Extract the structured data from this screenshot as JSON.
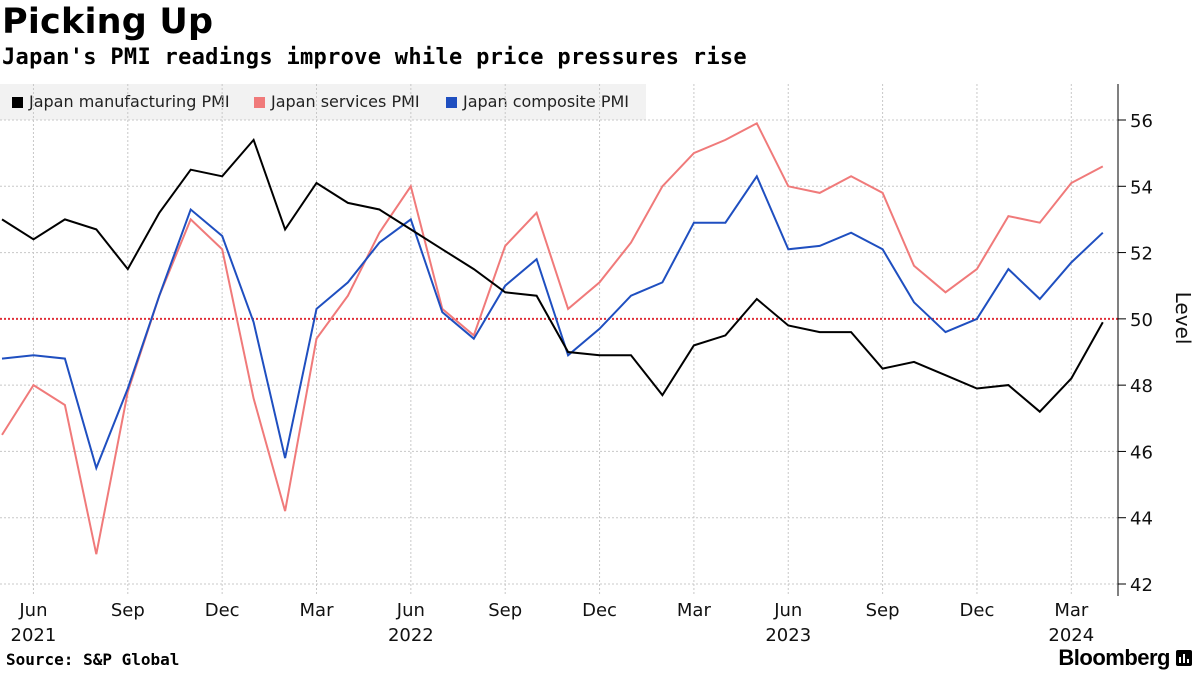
{
  "title": "Picking Up",
  "subtitle": "Japan's PMI readings improve while price pressures rise",
  "source": "Source: S&P Global",
  "brand": "Bloomberg",
  "colors": {
    "manufacturing": "#000000",
    "services": "#f07a7a",
    "composite": "#1f4fc0",
    "reference": "#e0303a",
    "grid": "#c8c8c8"
  },
  "chart_data": {
    "type": "line",
    "title": "Picking Up",
    "subtitle": "Japan's PMI readings improve while price pressures rise",
    "xlabel": "",
    "ylabel": "Level",
    "ylim": [
      42,
      57
    ],
    "yticks": [
      42,
      44,
      46,
      48,
      50,
      52,
      54,
      56
    ],
    "reference_line": 50,
    "grid": true,
    "legend_position": "top-left",
    "x": [
      "2021-05",
      "2021-06",
      "2021-07",
      "2021-08",
      "2021-09",
      "2021-10",
      "2021-11",
      "2021-12",
      "2022-01",
      "2022-02",
      "2022-03",
      "2022-04",
      "2022-05",
      "2022-06",
      "2022-07",
      "2022-08",
      "2022-09",
      "2022-10",
      "2022-11",
      "2022-12",
      "2023-01",
      "2023-02",
      "2023-03",
      "2023-04",
      "2023-05",
      "2023-06",
      "2023-07",
      "2023-08",
      "2023-09",
      "2023-10",
      "2023-11",
      "2023-12",
      "2024-01",
      "2024-02",
      "2024-03",
      "2024-04"
    ],
    "x_ticks": [
      {
        "month": "Jun",
        "year": "2021",
        "index": 1
      },
      {
        "month": "Sep",
        "year": "",
        "index": 4
      },
      {
        "month": "Dec",
        "year": "",
        "index": 7
      },
      {
        "month": "Mar",
        "year": "",
        "index": 10
      },
      {
        "month": "Jun",
        "year": "2022",
        "index": 13
      },
      {
        "month": "Sep",
        "year": "",
        "index": 16
      },
      {
        "month": "Dec",
        "year": "",
        "index": 19
      },
      {
        "month": "Mar",
        "year": "",
        "index": 22
      },
      {
        "month": "Jun",
        "year": "2023",
        "index": 25
      },
      {
        "month": "Sep",
        "year": "",
        "index": 28
      },
      {
        "month": "Dec",
        "year": "",
        "index": 31
      },
      {
        "month": "Mar",
        "year": "2024",
        "index": 34
      }
    ],
    "series": [
      {
        "key": "manufacturing",
        "name": "Japan manufacturing PMI",
        "values": [
          53.0,
          52.4,
          53.0,
          52.7,
          51.5,
          53.2,
          54.5,
          54.3,
          55.4,
          52.7,
          54.1,
          53.5,
          53.3,
          52.7,
          52.1,
          51.5,
          50.8,
          50.7,
          49.0,
          48.9,
          48.9,
          47.7,
          49.2,
          49.5,
          50.6,
          49.8,
          49.6,
          49.6,
          48.5,
          48.7,
          48.3,
          47.9,
          48.0,
          47.2,
          48.2,
          49.9
        ]
      },
      {
        "key": "services",
        "name": "Japan services PMI",
        "values": [
          46.5,
          48.0,
          47.4,
          42.9,
          47.8,
          50.7,
          53.0,
          52.1,
          47.6,
          44.2,
          49.4,
          50.7,
          52.6,
          54.0,
          50.3,
          49.5,
          52.2,
          53.2,
          50.3,
          51.1,
          52.3,
          54.0,
          55.0,
          55.4,
          55.9,
          54.0,
          53.8,
          54.3,
          53.8,
          51.6,
          50.8,
          51.5,
          53.1,
          52.9,
          54.1,
          54.6
        ]
      },
      {
        "key": "composite",
        "name": "Japan composite PMI",
        "values": [
          48.8,
          48.9,
          48.8,
          45.5,
          47.9,
          50.7,
          53.3,
          52.5,
          49.9,
          45.8,
          50.3,
          51.1,
          52.3,
          53.0,
          50.2,
          49.4,
          51.0,
          51.8,
          48.9,
          49.7,
          50.7,
          51.1,
          52.9,
          52.9,
          54.3,
          52.1,
          52.2,
          52.6,
          52.1,
          50.5,
          49.6,
          50.0,
          51.5,
          50.6,
          51.7,
          52.6
        ]
      }
    ]
  }
}
